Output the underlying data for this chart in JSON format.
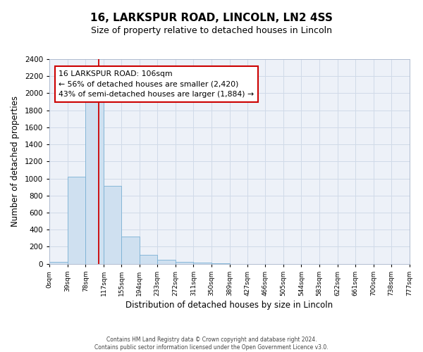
{
  "title": "16, LARKSPUR ROAD, LINCOLN, LN2 4SS",
  "subtitle": "Size of property relative to detached houses in Lincoln",
  "xlabel": "Distribution of detached houses by size in Lincoln",
  "ylabel": "Number of detached properties",
  "bar_edges": [
    0,
    39,
    78,
    117,
    155,
    194,
    233,
    272,
    311,
    350,
    389,
    427,
    466,
    505,
    544,
    583,
    622,
    661,
    700,
    738,
    777
  ],
  "bar_heights": [
    20,
    1020,
    1900,
    910,
    320,
    105,
    50,
    25,
    10,
    5,
    0,
    0,
    0,
    0,
    0,
    0,
    0,
    0,
    0,
    0
  ],
  "bar_color": "#cfe0f0",
  "bar_edge_color": "#7ab0d4",
  "grid_color": "#d0dae8",
  "background_color": "#edf1f8",
  "property_line_x": 106,
  "property_line_color": "#cc0000",
  "annotation_line1": "16 LARKSPUR ROAD: 106sqm",
  "annotation_line2": "← 56% of detached houses are smaller (2,420)",
  "annotation_line3": "43% of semi-detached houses are larger (1,884) →",
  "annotation_box_color": "#ffffff",
  "annotation_box_edge": "#cc0000",
  "ylim": [
    0,
    2400
  ],
  "yticks": [
    0,
    200,
    400,
    600,
    800,
    1000,
    1200,
    1400,
    1600,
    1800,
    2000,
    2200,
    2400
  ],
  "xtick_labels": [
    "0sqm",
    "39sqm",
    "78sqm",
    "117sqm",
    "155sqm",
    "194sqm",
    "233sqm",
    "272sqm",
    "311sqm",
    "350sqm",
    "389sqm",
    "427sqm",
    "466sqm",
    "505sqm",
    "544sqm",
    "583sqm",
    "622sqm",
    "661sqm",
    "700sqm",
    "738sqm",
    "777sqm"
  ],
  "footer_line1": "Contains HM Land Registry data © Crown copyright and database right 2024.",
  "footer_line2": "Contains public sector information licensed under the Open Government Licence v3.0."
}
